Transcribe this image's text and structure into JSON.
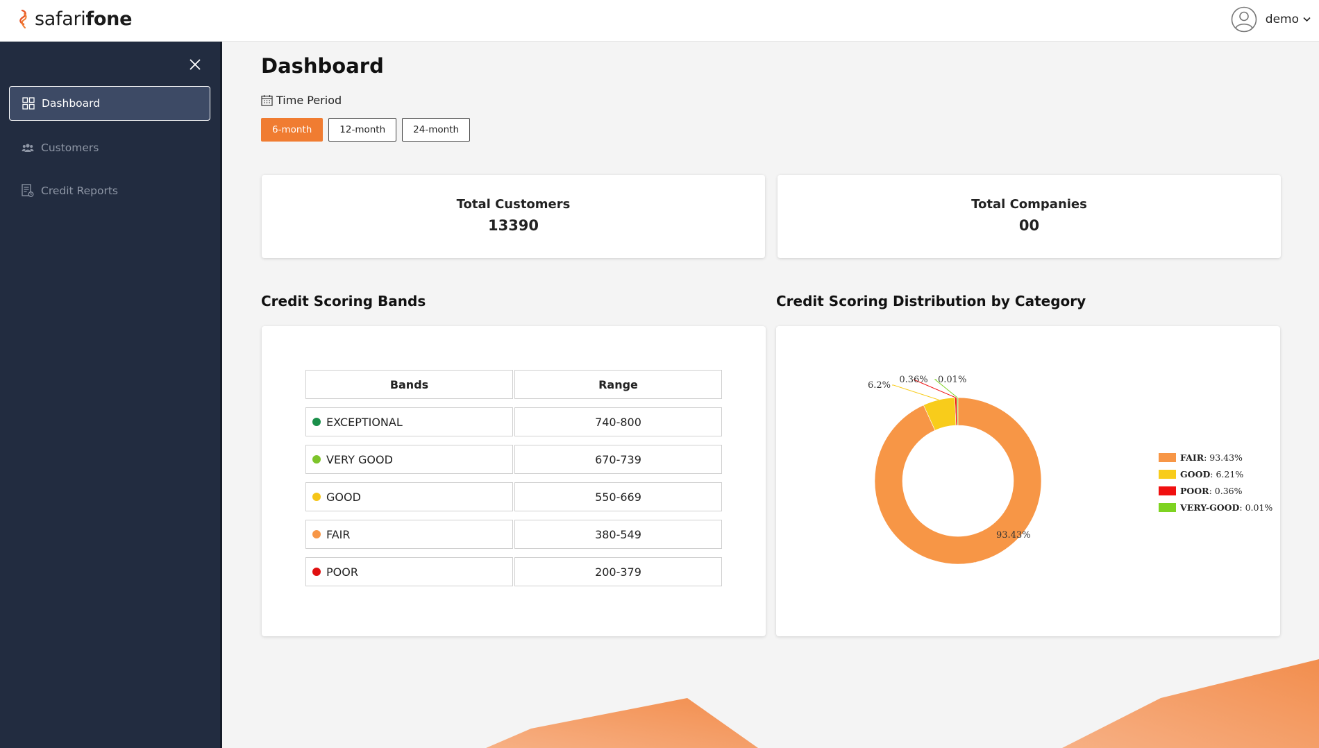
{
  "header": {
    "logo_part1": "safari",
    "logo_part2": "fone",
    "user_name": "demo",
    "user_icon": "user-circle-icon",
    "chevron_icon": "chevron-down-icon"
  },
  "sidebar": {
    "close_icon": "close-icon",
    "items": [
      {
        "label": "Dashboard",
        "icon": "grid-icon",
        "active": true
      },
      {
        "label": "Customers",
        "icon": "users-icon",
        "active": false
      },
      {
        "label": "Credit Reports",
        "icon": "report-icon",
        "active": false
      }
    ]
  },
  "main": {
    "title": "Dashboard",
    "time_period_label": "Time Period",
    "periods": [
      "6-month",
      "12-month",
      "24-month"
    ],
    "active_period": "6-month",
    "stats": [
      {
        "label": "Total Customers",
        "value": "13390"
      },
      {
        "label": "Total Companies",
        "value": "00"
      }
    ],
    "bands_title": "Credit Scoring Bands",
    "distribution_title": "Credit Scoring Distribution by Category"
  },
  "bands_table": {
    "headers": [
      "Bands",
      "Range"
    ],
    "rows": [
      {
        "band": "EXCEPTIONAL",
        "range": "740-800",
        "color": "#1a8f4a"
      },
      {
        "band": "VERY GOOD",
        "range": "670-739",
        "color": "#7dc42a"
      },
      {
        "band": "GOOD",
        "range": "550-669",
        "color": "#f5c518"
      },
      {
        "band": "FAIR",
        "range": "380-549",
        "color": "#f79646"
      },
      {
        "band": "POOR",
        "range": "200-379",
        "color": "#e01010"
      }
    ]
  },
  "chart_data": {
    "type": "pie",
    "variant": "donut",
    "title": "Credit Scoring Distribution by Category",
    "slices": [
      {
        "name": "FAIR",
        "value": 93.43,
        "slice_label": "93.43%",
        "legend_value": "93.43%",
        "color": "#f79646"
      },
      {
        "name": "GOOD",
        "value": 6.21,
        "slice_label": "6.2%",
        "legend_value": "6.21%",
        "color": "#f8cc1b"
      },
      {
        "name": "POOR",
        "value": 0.36,
        "slice_label": "0.36%",
        "legend_value": "0.36%",
        "color": "#f01010"
      },
      {
        "name": "VERY-GOOD",
        "value": 0.01,
        "slice_label": "0.01%",
        "legend_value": "0.01%",
        "color": "#7ed321"
      }
    ],
    "legend_position": "right"
  },
  "colors": {
    "accent": "#f07c31",
    "sidebar_bg": "#222c40",
    "sidebar_active": "#3d4a65"
  }
}
